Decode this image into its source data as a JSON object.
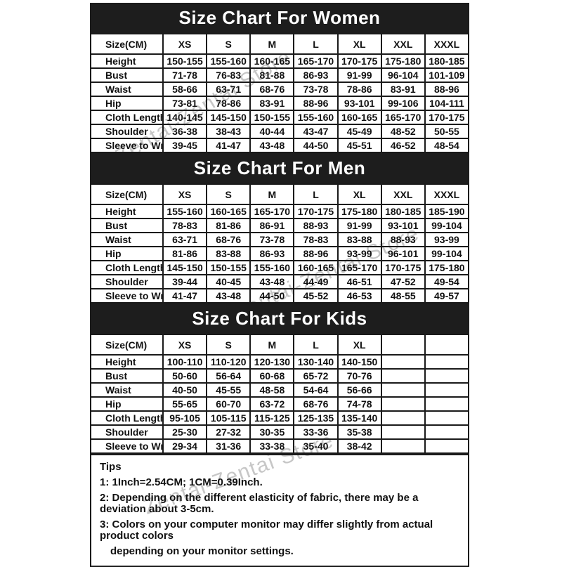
{
  "watermark": {
    "text": "Zentai-Zentai Store",
    "color": "#9a9a9a"
  },
  "colors": {
    "title_bar_bg": "#1d1d1d",
    "title_bar_text": "#ffffff",
    "table_border": "#1a1a1a",
    "table_text": "#111111",
    "page_bg": "#ffffff"
  },
  "sections": [
    {
      "title": "Size Chart For Women",
      "columns": [
        "Size(CM)",
        "XS",
        "S",
        "M",
        "L",
        "XL",
        "XXL",
        "XXXL"
      ],
      "rows": [
        [
          "Height",
          "150-155",
          "155-160",
          "160-165",
          "165-170",
          "170-175",
          "175-180",
          "180-185"
        ],
        [
          "Bust",
          "71-78",
          "76-83",
          "81-88",
          "86-93",
          "91-99",
          "96-104",
          "101-109"
        ],
        [
          "Waist",
          "58-66",
          "63-71",
          "68-76",
          "73-78",
          "78-86",
          "83-91",
          "88-96"
        ],
        [
          "Hip",
          "73-81",
          "78-86",
          "83-91",
          "88-96",
          "93-101",
          "99-106",
          "104-111"
        ],
        [
          "Cloth Length",
          "140-145",
          "145-150",
          "150-155",
          "155-160",
          "160-165",
          "165-170",
          "170-175"
        ],
        [
          "Shoulder",
          "36-38",
          "38-43",
          "40-44",
          "43-47",
          "45-49",
          "48-52",
          "50-55"
        ],
        [
          "Sleeve to Wrist",
          "39-45",
          "41-47",
          "43-48",
          "44-50",
          "45-51",
          "46-52",
          "48-54"
        ]
      ]
    },
    {
      "title": "Size Chart For Men",
      "columns": [
        "Size(CM)",
        "XS",
        "S",
        "M",
        "L",
        "XL",
        "XXL",
        "XXXL"
      ],
      "rows": [
        [
          "Height",
          "155-160",
          "160-165",
          "165-170",
          "170-175",
          "175-180",
          "180-185",
          "185-190"
        ],
        [
          "Bust",
          "78-83",
          "81-86",
          "86-91",
          "88-93",
          "91-99",
          "93-101",
          "99-104"
        ],
        [
          "Waist",
          "63-71",
          "68-76",
          "73-78",
          "78-83",
          "83-88",
          "88-93",
          "93-99"
        ],
        [
          "Hip",
          "81-86",
          "83-88",
          "86-93",
          "88-96",
          "93-99",
          "96-101",
          "99-104"
        ],
        [
          "Cloth Length",
          "145-150",
          "150-155",
          "155-160",
          "160-165",
          "165-170",
          "170-175",
          "175-180"
        ],
        [
          "Shoulder",
          "39-44",
          "40-45",
          "43-48",
          "44-49",
          "46-51",
          "47-52",
          "49-54"
        ],
        [
          "Sleeve to Wrist",
          "41-47",
          "43-48",
          "44-50",
          "45-52",
          "46-53",
          "48-55",
          "49-57"
        ]
      ]
    },
    {
      "title": "Size Chart For Kids",
      "columns": [
        "Size(CM)",
        "XS",
        "S",
        "M",
        "L",
        "XL",
        "",
        ""
      ],
      "rows": [
        [
          "Height",
          "100-110",
          "110-120",
          "120-130",
          "130-140",
          "140-150",
          "",
          ""
        ],
        [
          "Bust",
          "50-60",
          "56-64",
          "60-68",
          "65-72",
          "70-76",
          "",
          ""
        ],
        [
          "Waist",
          "40-50",
          "45-55",
          "48-58",
          "54-64",
          "56-66",
          "",
          ""
        ],
        [
          "Hip",
          "55-65",
          "60-70",
          "63-72",
          "68-76",
          "74-78",
          "",
          ""
        ],
        [
          "Cloth Length",
          "95-105",
          "105-115",
          "115-125",
          "125-135",
          "135-140",
          "",
          ""
        ],
        [
          "Shoulder",
          "25-30",
          "27-32",
          "30-35",
          "33-36",
          "35-38",
          "",
          ""
        ],
        [
          "Sleeve to Wrist",
          "29-34",
          "31-36",
          "33-38",
          "35-40",
          "38-42",
          "",
          ""
        ]
      ]
    }
  ],
  "tips": {
    "title": "Tips",
    "lines": [
      "1: 1Inch=2.54CM; 1CM=0.39Inch.",
      "2: Depending on the different elasticity of fabric, there may be a deviation about 3-5cm.",
      "3: Colors on your computer monitor may differ slightly from actual product colors",
      "depending on your monitor settings."
    ]
  }
}
